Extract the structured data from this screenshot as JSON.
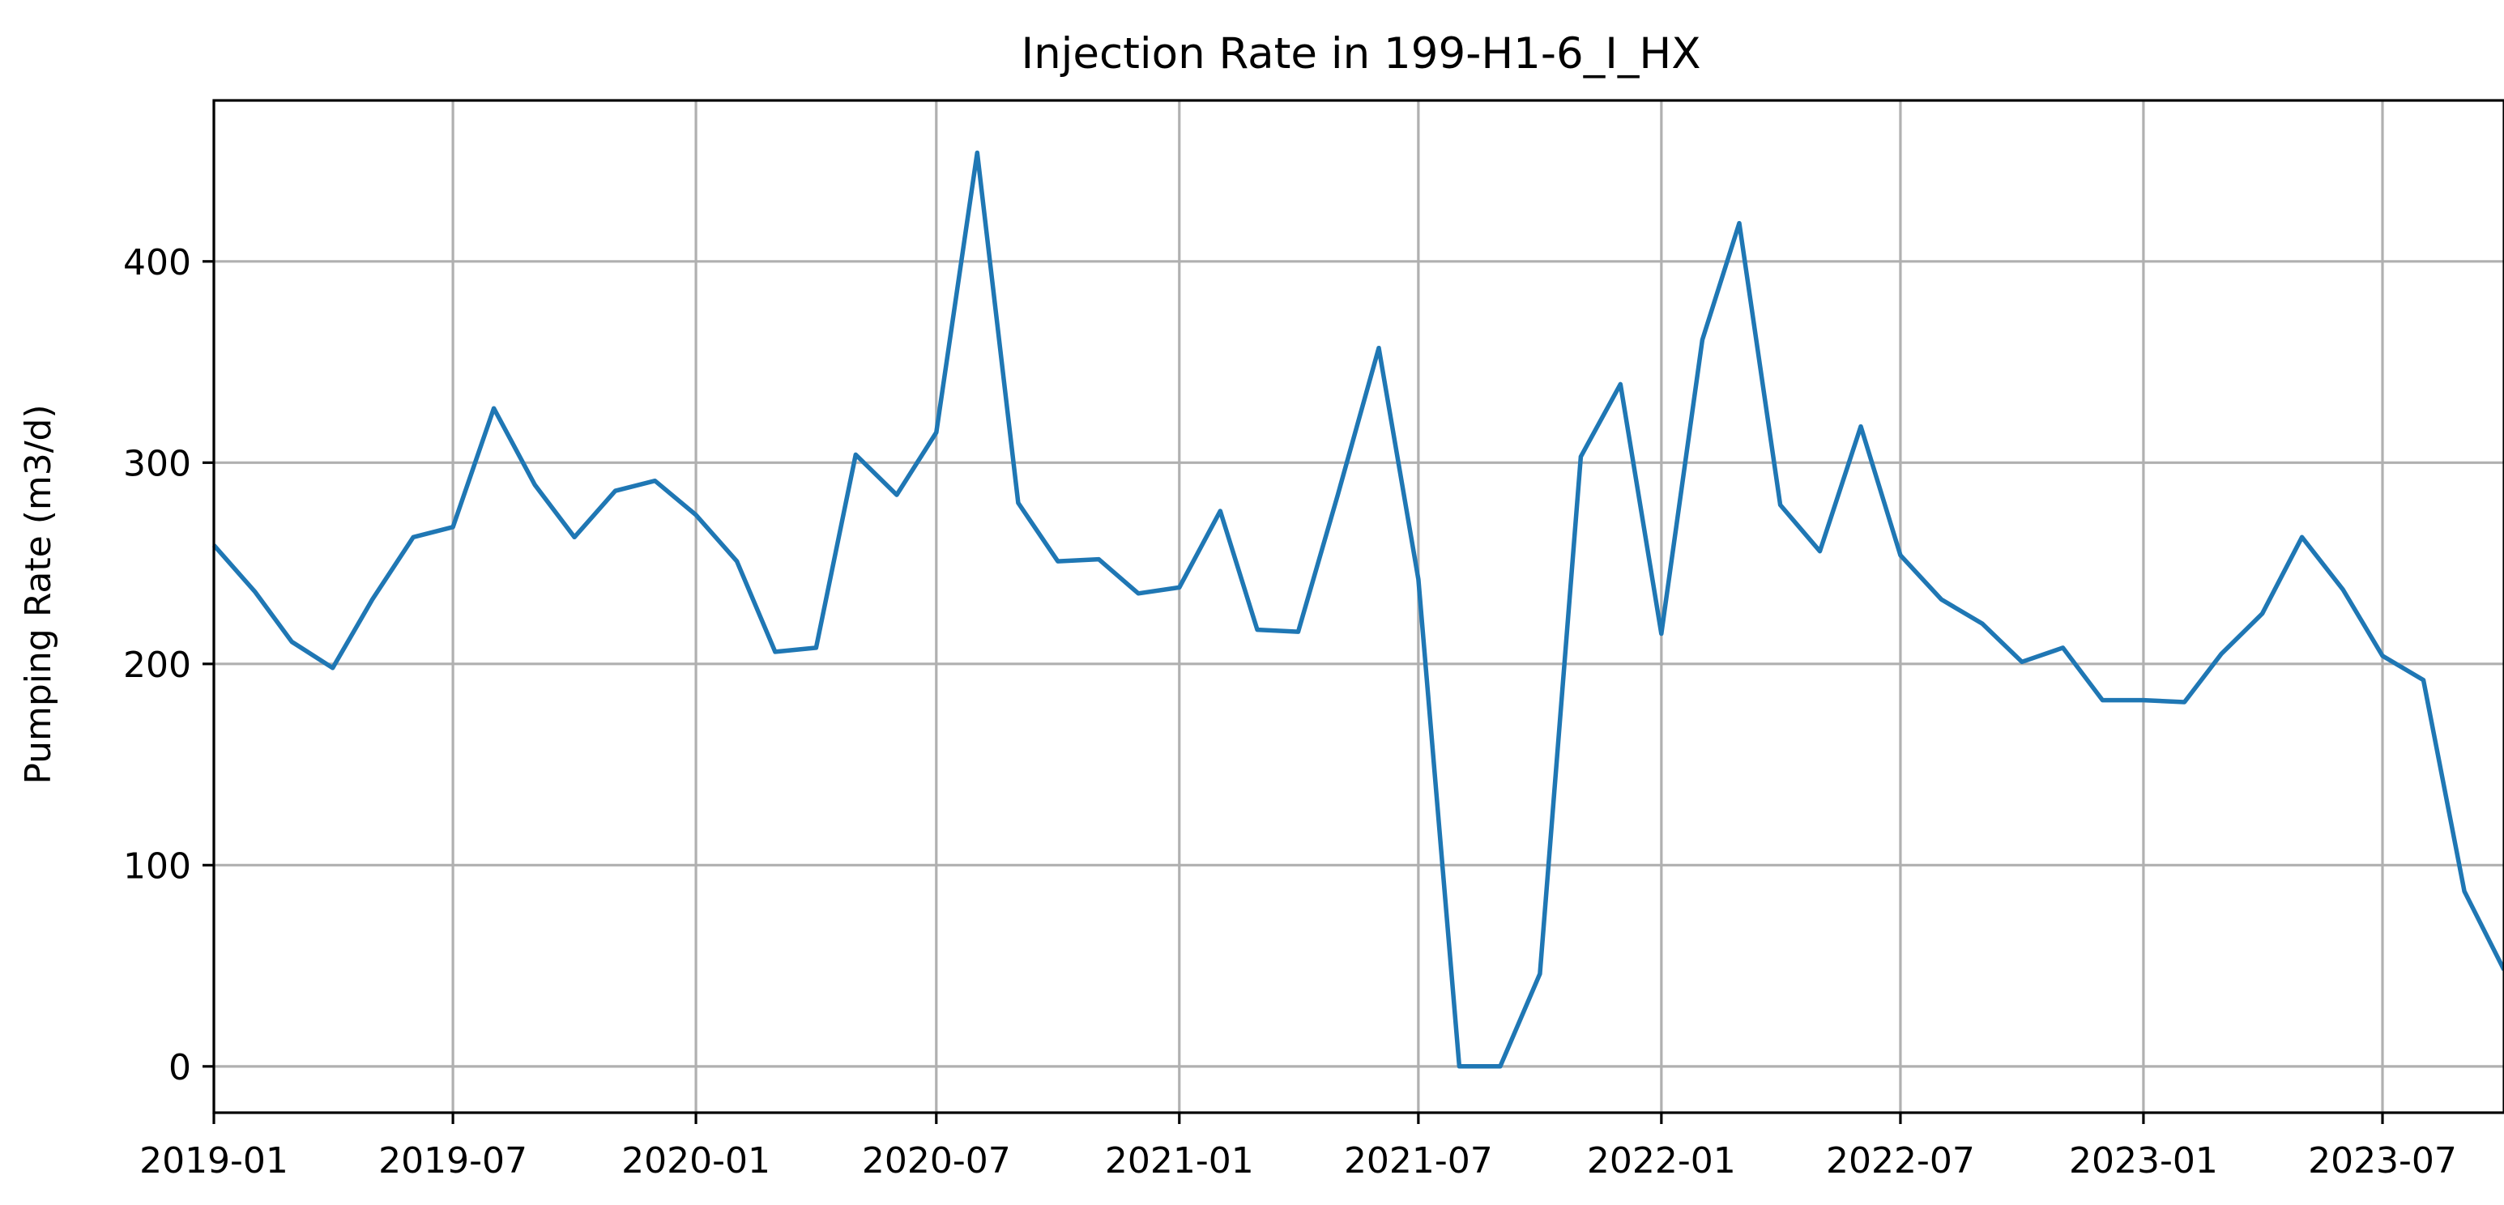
{
  "chart_data": {
    "type": "line",
    "title": "Injection Rate in 199-H1-6_I_HX",
    "xlabel": "",
    "ylabel": "Pumping Rate (m3/d)",
    "xlim": [
      "2019-01-01",
      "2023-10-01"
    ],
    "ylim": [
      -23,
      480
    ],
    "yticks": [
      0,
      100,
      200,
      300,
      400
    ],
    "xticks": [
      "2019-01-01",
      "2019-07-01",
      "2020-01-01",
      "2020-07-01",
      "2021-01-01",
      "2021-07-01",
      "2022-01-01",
      "2022-07-01",
      "2023-01-01",
      "2023-07-01"
    ],
    "xtick_labels": [
      "2019-01",
      "2019-07",
      "2020-01",
      "2020-07",
      "2021-01",
      "2021-07",
      "2022-01",
      "2022-07",
      "2023-01",
      "2023-07"
    ],
    "grid": true,
    "series": [
      {
        "color": "#1f77b4",
        "x": [
          "2019-01-01",
          "2019-02-01",
          "2019-03-01",
          "2019-04-01",
          "2019-05-01",
          "2019-06-01",
          "2019-07-01",
          "2019-08-01",
          "2019-09-01",
          "2019-10-01",
          "2019-11-01",
          "2019-12-01",
          "2020-01-01",
          "2020-02-01",
          "2020-03-01",
          "2020-04-01",
          "2020-05-01",
          "2020-06-01",
          "2020-07-01",
          "2020-08-01",
          "2020-09-01",
          "2020-10-01",
          "2020-11-01",
          "2020-12-01",
          "2021-01-01",
          "2021-02-01",
          "2021-03-01",
          "2021-04-01",
          "2021-05-01",
          "2021-06-01",
          "2021-07-01",
          "2021-08-01",
          "2021-09-01",
          "2021-10-01",
          "2021-11-01",
          "2021-12-01",
          "2022-01-01",
          "2022-02-01",
          "2022-03-01",
          "2022-04-01",
          "2022-05-01",
          "2022-06-01",
          "2022-07-01",
          "2022-08-01",
          "2022-09-01",
          "2022-10-01",
          "2022-11-01",
          "2022-12-01",
          "2023-01-01",
          "2023-02-01",
          "2023-03-01",
          "2023-04-01",
          "2023-05-01",
          "2023-06-01",
          "2023-07-01",
          "2023-08-01",
          "2023-09-01",
          "2023-10-01"
        ],
        "y": [
          259,
          236,
          211,
          198,
          232,
          263,
          268,
          327,
          289,
          263,
          286,
          291,
          274,
          251,
          206,
          208,
          304,
          284,
          315,
          454,
          280,
          251,
          252,
          235,
          238,
          276,
          217,
          216,
          284,
          357,
          242,
          0,
          0,
          46,
          303,
          339,
          215,
          361,
          419,
          279,
          256,
          318,
          254,
          232,
          220,
          201,
          208,
          182,
          182,
          181,
          205,
          225,
          263,
          237,
          204,
          192,
          87,
          48
        ]
      }
    ]
  }
}
